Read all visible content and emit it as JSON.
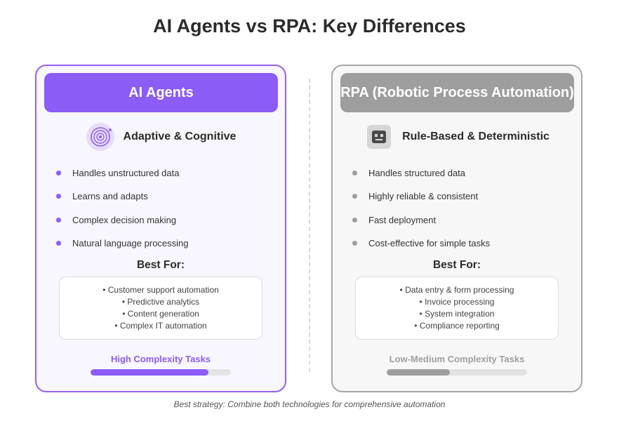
{
  "title": "AI Agents vs RPA: Key Differences",
  "ai": {
    "header": "AI Agents",
    "subtitle": "Adaptive & Cognitive",
    "icon": "ai-brain-icon",
    "features": [
      "Handles unstructured data",
      "Learns and adapts",
      "Complex decision making",
      "Natural language processing"
    ],
    "best_for_title": "Best For:",
    "best_for": [
      "• Customer support automation",
      "• Predictive analytics",
      "• Content generation",
      "• Complex IT automation"
    ],
    "complexity_label": "High Complexity Tasks",
    "complexity_level": 0.84,
    "accent": "#8b5cf6"
  },
  "rpa": {
    "header": "RPA (Robotic Process Automation)",
    "subtitle": "Rule-Based & Deterministic",
    "icon": "robot-icon",
    "features": [
      "Handles structured data",
      "Highly reliable & consistent",
      "Fast deployment",
      "Cost-effective for simple tasks"
    ],
    "best_for_title": "Best For:",
    "best_for": [
      "• Data entry & form processing",
      "• Invoice processing",
      "• System integration",
      "• Compliance reporting"
    ],
    "complexity_label": "Low-Medium Complexity Tasks",
    "complexity_level": 0.45,
    "accent": "#9e9e9e"
  },
  "footer": "Best strategy: Combine both technologies for comprehensive automation"
}
